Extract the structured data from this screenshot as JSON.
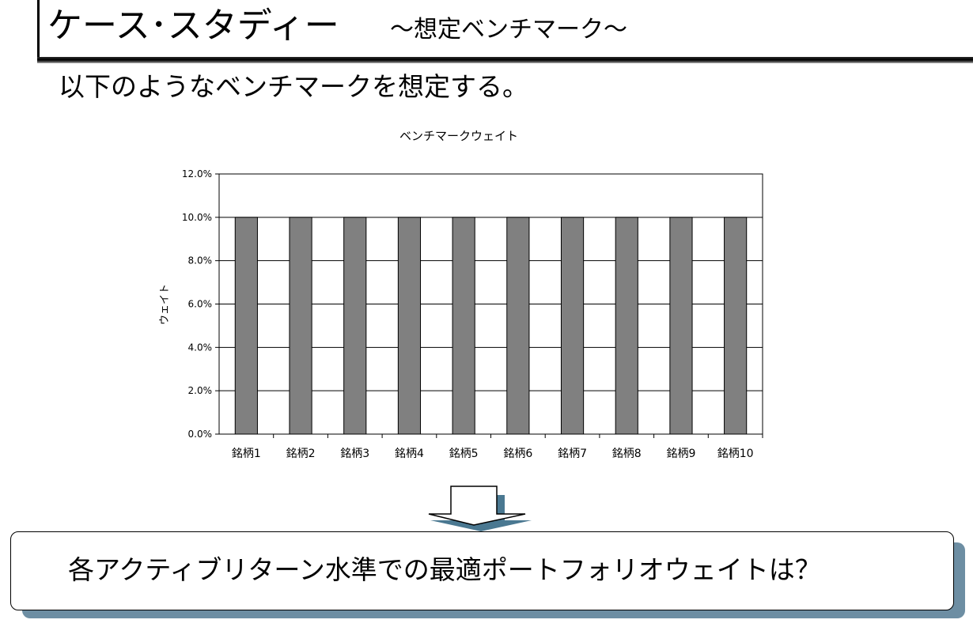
{
  "slide": {
    "title": "ケース･スタディー",
    "subtitle": "～想定ベンチマーク～",
    "intro": "以下のようなベンチマークを想定する。",
    "question": "各アクティブリターン水準での最適ポートフォリオウェイトは？"
  },
  "colors": {
    "bar": "#808080",
    "arrow_shadow": "#4a7891",
    "box_shadow": "#6d8ea3"
  },
  "chart_data": {
    "type": "bar",
    "title": "ベンチマークウェイト",
    "xlabel": "",
    "ylabel": "ウェイト",
    "categories": [
      "銘柄1",
      "銘柄2",
      "銘柄3",
      "銘柄4",
      "銘柄5",
      "銘柄6",
      "銘柄7",
      "銘柄8",
      "銘柄9",
      "銘柄10"
    ],
    "values": [
      0.1,
      0.1,
      0.1,
      0.1,
      0.1,
      0.1,
      0.1,
      0.1,
      0.1,
      0.1
    ],
    "ylim": [
      0,
      0.12
    ],
    "yticks": [
      0.0,
      0.02,
      0.04,
      0.06,
      0.08,
      0.1,
      0.12
    ],
    "ytick_labels": [
      "0.0%",
      "2.0%",
      "4.0%",
      "6.0%",
      "8.0%",
      "10.0%",
      "12.0%"
    ],
    "grid": true,
    "legend": "none"
  }
}
